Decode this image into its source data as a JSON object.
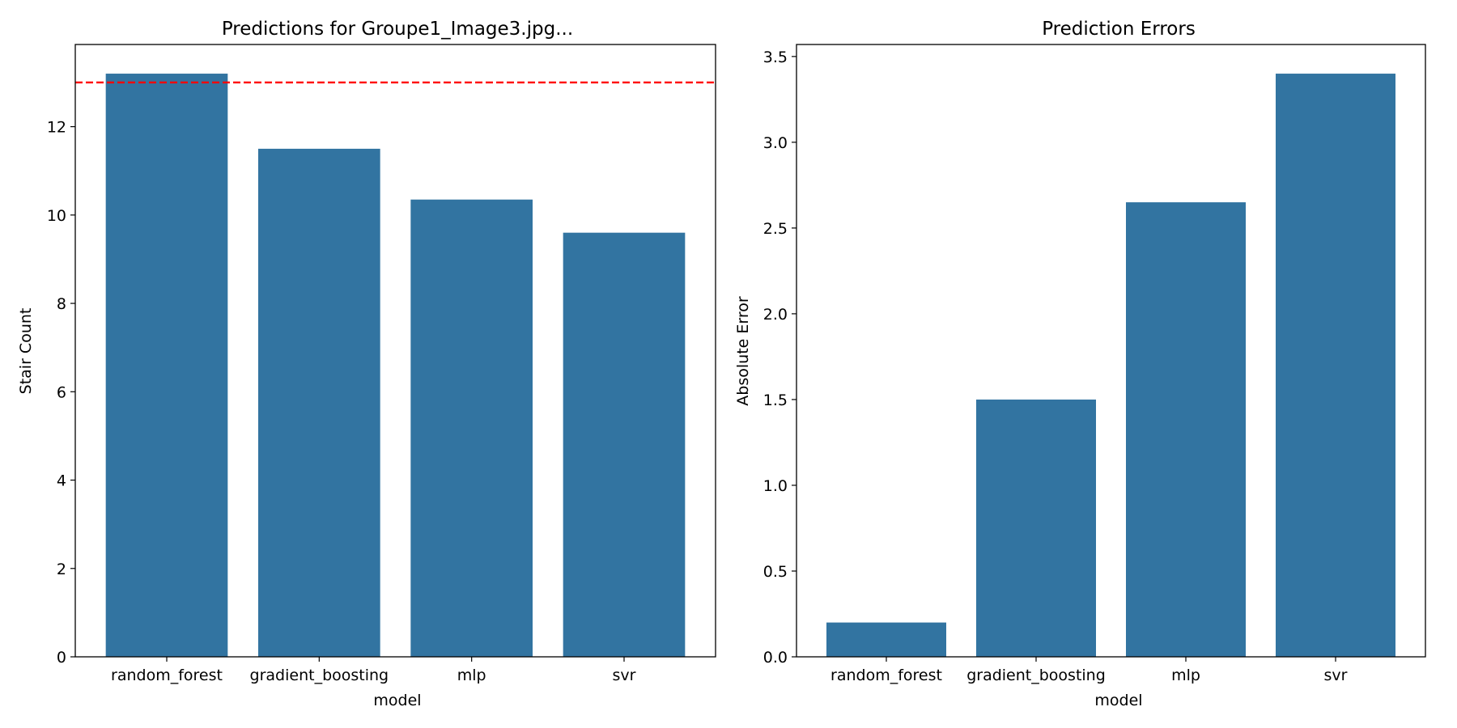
{
  "chart_data": [
    {
      "type": "bar",
      "title": "Predictions for Groupe1_Image3.jpg...",
      "xlabel": "model",
      "ylabel": "Stair Count",
      "categories": [
        "random_forest",
        "gradient_boosting",
        "mlp",
        "svr"
      ],
      "values": [
        13.2,
        11.5,
        10.35,
        9.6
      ],
      "ylim": [
        0,
        13.86
      ],
      "yticks": [
        0,
        2,
        4,
        6,
        8,
        10,
        12
      ],
      "ytick_labels": [
        "0",
        "2",
        "4",
        "6",
        "8",
        "10",
        "12"
      ],
      "reference_line": {
        "y": 13.0,
        "style": "dashed",
        "color": "#ff0000"
      },
      "bar_color": "#3274a1",
      "grid": false
    },
    {
      "type": "bar",
      "title": "Prediction Errors",
      "xlabel": "model",
      "ylabel": "Absolute Error",
      "categories": [
        "random_forest",
        "gradient_boosting",
        "mlp",
        "svr"
      ],
      "values": [
        0.2,
        1.5,
        2.65,
        3.4
      ],
      "ylim": [
        0,
        3.57
      ],
      "yticks": [
        0,
        0.5,
        1,
        1.5,
        2,
        2.5,
        3,
        3.5
      ],
      "ytick_labels": [
        "0.0",
        "0.5",
        "1.0",
        "1.5",
        "2.0",
        "2.5",
        "3.0",
        "3.5"
      ],
      "bar_color": "#3274a1",
      "grid": false
    }
  ]
}
